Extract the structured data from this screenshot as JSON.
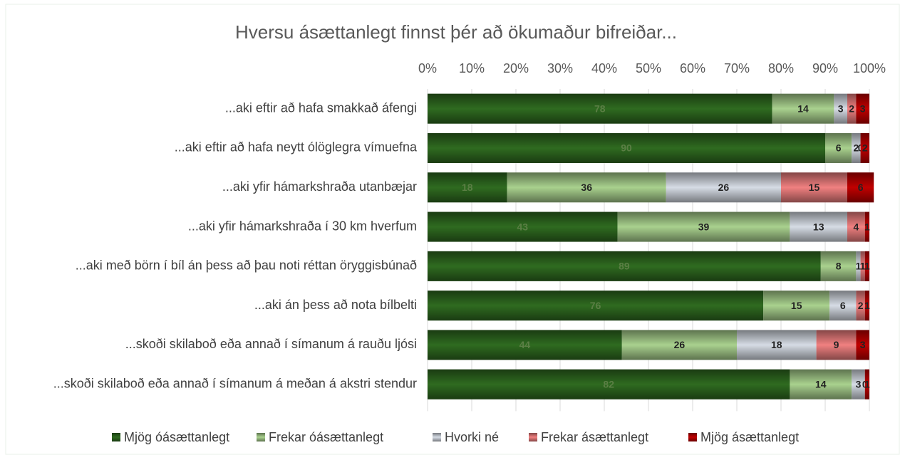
{
  "chart_data": {
    "type": "stacked-bar-horizontal",
    "title": "Hversu ásættanlegt finnst þér að ökumaður bifreiðar...",
    "categories": [
      "...aki eftir að hafa smakkað áfengi",
      "...aki eftir að hafa neytt ólöglegra vímuefna",
      "...aki yfir hámarkshraða utanbæjar",
      "...aki yfir hámarkshraða í 30 km hverfum",
      "...aki með börn í bíl án þess að þau noti réttan öryggisbúnað",
      "...aki án þess að nota bílbelti",
      "...skoði skilaboð eða annað í símanum á rauðu ljósi",
      "...skoði skilaboð eða annað í símanum á meðan á akstri stendur"
    ],
    "series": [
      {
        "name": "Mjög óásættanlegt",
        "color": "#2f6b20",
        "values": [
          78,
          90,
          18,
          43,
          89,
          76,
          44,
          82
        ]
      },
      {
        "name": "Frekar óásættanlegt",
        "color": "#a9d18e",
        "values": [
          14,
          6,
          36,
          39,
          8,
          15,
          26,
          14
        ]
      },
      {
        "name": "Hvorki né",
        "color": "#d6dce5",
        "values": [
          3,
          2,
          26,
          13,
          1,
          6,
          18,
          3
        ]
      },
      {
        "name": "Frekar ásættanlegt",
        "color": "#f08080",
        "values": [
          2,
          0,
          15,
          4,
          1,
          2,
          9,
          0
        ]
      },
      {
        "name": "Mjög ásættanlegt",
        "color": "#c00000",
        "values": [
          3,
          2,
          6,
          1,
          1,
          1,
          3,
          1
        ]
      }
    ],
    "xlim": [
      0,
      100
    ],
    "xticks": [
      {
        "value": 0,
        "label": "0%"
      },
      {
        "value": 10,
        "label": "10%"
      },
      {
        "value": 20,
        "label": "20%"
      },
      {
        "value": 30,
        "label": "30%"
      },
      {
        "value": 40,
        "label": "40%"
      },
      {
        "value": 50,
        "label": "50%"
      },
      {
        "value": 60,
        "label": "60%"
      },
      {
        "value": 70,
        "label": "70%"
      },
      {
        "value": 80,
        "label": "80%"
      },
      {
        "value": 90,
        "label": "90%"
      },
      {
        "value": 100,
        "label": "100%"
      }
    ],
    "grid": true,
    "legend": "bottom"
  }
}
